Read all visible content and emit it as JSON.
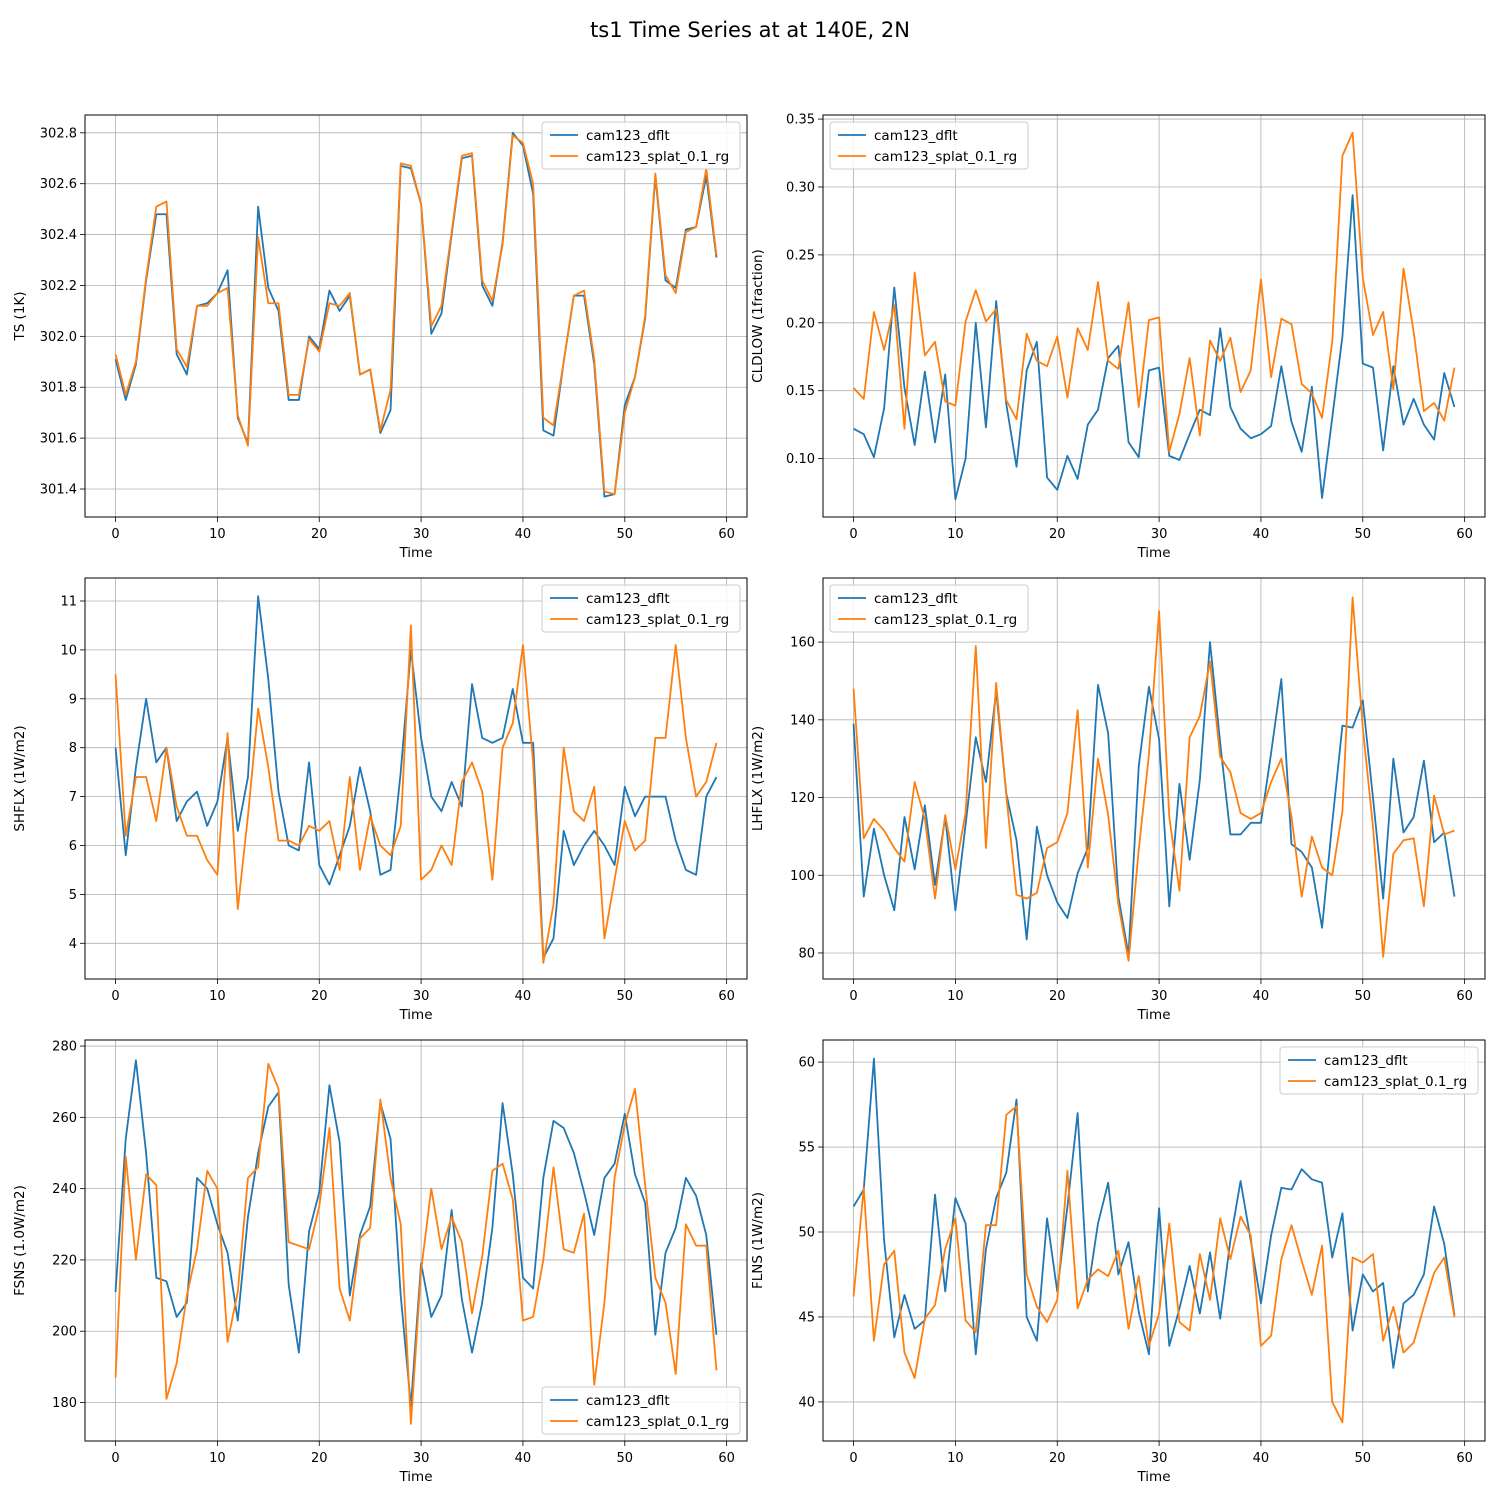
{
  "figure": {
    "title": "ts1 Time Series at at 140E, 2N"
  },
  "colors": {
    "cam123_dflt": "#1f77b4",
    "cam123_splat_0.1_rg": "#ff7f0e"
  },
  "chart_data": [
    {
      "type": "line",
      "ylabel": "TS (1K)",
      "xlabel": "Time",
      "xlim": [
        -3,
        62
      ],
      "ylim": [
        301.29,
        302.87
      ],
      "grid": true,
      "legend": "top-right",
      "xticks": [
        0,
        10,
        20,
        30,
        40,
        50,
        60
      ],
      "yticks": [
        301.4,
        301.6,
        301.8,
        302.0,
        302.2,
        302.4,
        302.6,
        302.8
      ],
      "ytick_labels": [
        "301.4",
        "301.6",
        "301.8",
        "302.0",
        "302.2",
        "302.4",
        "302.6",
        "302.8"
      ],
      "series": [
        {
          "name": "cam123_dflt",
          "values": [
            301.91,
            301.75,
            301.89,
            302.22,
            302.48,
            302.48,
            301.93,
            301.85,
            302.12,
            302.13,
            302.17,
            302.26,
            301.68,
            301.58,
            302.51,
            302.19,
            302.1,
            301.75,
            301.75,
            302.0,
            301.95,
            302.18,
            302.1,
            302.16,
            301.85,
            301.87,
            301.62,
            301.71,
            302.67,
            302.66,
            302.52,
            302.01,
            302.09,
            302.4,
            302.7,
            302.71,
            302.2,
            302.12,
            302.37,
            302.8,
            302.75,
            302.56,
            301.63,
            301.61,
            301.9,
            302.16,
            302.16,
            301.89,
            301.37,
            301.38,
            301.73,
            301.84,
            302.07,
            302.63,
            302.22,
            302.19,
            302.42,
            302.43,
            302.63,
            302.31
          ]
        },
        {
          "name": "cam123_splat_0.1_rg",
          "values": [
            301.93,
            301.77,
            301.9,
            302.23,
            302.51,
            302.53,
            301.95,
            301.88,
            302.12,
            302.12,
            302.17,
            302.19,
            301.69,
            301.57,
            302.39,
            302.13,
            302.13,
            301.77,
            301.77,
            301.99,
            301.94,
            302.13,
            302.12,
            302.17,
            301.85,
            301.87,
            301.63,
            301.79,
            302.68,
            302.67,
            302.52,
            302.04,
            302.12,
            302.41,
            302.71,
            302.72,
            302.22,
            302.14,
            302.36,
            302.79,
            302.76,
            302.6,
            301.68,
            301.65,
            301.9,
            302.16,
            302.18,
            301.91,
            301.39,
            301.38,
            301.7,
            301.84,
            302.08,
            302.64,
            302.24,
            302.17,
            302.41,
            302.43,
            302.66,
            302.32
          ]
        }
      ]
    },
    {
      "type": "line",
      "ylabel": "CLDLOW (1fraction)",
      "xlabel": "Time",
      "xlim": [
        -3,
        62
      ],
      "ylim": [
        0.057,
        0.353
      ],
      "grid": true,
      "legend": "top-left",
      "xticks": [
        0,
        10,
        20,
        30,
        40,
        50,
        60
      ],
      "yticks": [
        0.1,
        0.15,
        0.2,
        0.25,
        0.3,
        0.35
      ],
      "ytick_labels": [
        "0.10",
        "0.15",
        "0.20",
        "0.25",
        "0.30",
        "0.35"
      ],
      "series": [
        {
          "name": "cam123_dflt",
          "values": [
            0.122,
            0.118,
            0.101,
            0.137,
            0.226,
            0.152,
            0.11,
            0.164,
            0.112,
            0.162,
            0.07,
            0.1,
            0.2,
            0.123,
            0.216,
            0.14,
            0.094,
            0.165,
            0.186,
            0.086,
            0.077,
            0.102,
            0.085,
            0.125,
            0.136,
            0.174,
            0.183,
            0.112,
            0.101,
            0.165,
            0.167,
            0.102,
            0.099,
            0.118,
            0.136,
            0.132,
            0.196,
            0.138,
            0.122,
            0.115,
            0.118,
            0.124,
            0.168,
            0.127,
            0.105,
            0.153,
            0.071,
            0.13,
            0.19,
            0.294,
            0.17,
            0.167,
            0.106,
            0.168,
            0.125,
            0.144,
            0.125,
            0.114,
            0.163,
            0.138
          ]
        },
        {
          "name": "cam123_splat_0.1_rg",
          "values": [
            0.152,
            0.144,
            0.208,
            0.18,
            0.213,
            0.122,
            0.237,
            0.176,
            0.186,
            0.142,
            0.139,
            0.201,
            0.224,
            0.201,
            0.21,
            0.143,
            0.129,
            0.192,
            0.172,
            0.168,
            0.19,
            0.145,
            0.196,
            0.18,
            0.23,
            0.172,
            0.166,
            0.215,
            0.138,
            0.202,
            0.204,
            0.105,
            0.133,
            0.174,
            0.117,
            0.187,
            0.172,
            0.189,
            0.149,
            0.165,
            0.232,
            0.16,
            0.203,
            0.199,
            0.155,
            0.148,
            0.13,
            0.186,
            0.323,
            0.34,
            0.233,
            0.191,
            0.208,
            0.151,
            0.24,
            0.193,
            0.135,
            0.141,
            0.128,
            0.167
          ]
        }
      ]
    },
    {
      "type": "line",
      "ylabel": "SHFLX (1W/m2)",
      "xlabel": "Time",
      "xlim": [
        -3,
        62
      ],
      "ylim": [
        3.27,
        11.47
      ],
      "grid": true,
      "legend": "top-right",
      "xticks": [
        0,
        10,
        20,
        30,
        40,
        50,
        60
      ],
      "yticks": [
        4,
        5,
        6,
        7,
        8,
        9,
        10,
        11
      ],
      "ytick_labels": [
        "4",
        "5",
        "6",
        "7",
        "8",
        "9",
        "10",
        "11"
      ],
      "series": [
        {
          "name": "cam123_dflt",
          "values": [
            8.0,
            5.8,
            7.6,
            9.0,
            7.7,
            8.0,
            6.5,
            6.9,
            7.1,
            6.4,
            6.9,
            8.2,
            6.3,
            7.4,
            11.1,
            9.4,
            7.1,
            6.0,
            5.9,
            7.7,
            5.6,
            5.2,
            5.8,
            6.4,
            7.6,
            6.7,
            5.4,
            5.5,
            7.5,
            10.0,
            8.2,
            7.0,
            6.7,
            7.3,
            6.8,
            9.3,
            8.2,
            8.1,
            8.2,
            9.2,
            8.1,
            8.1,
            3.7,
            4.1,
            6.3,
            5.6,
            6.0,
            6.3,
            6.0,
            5.6,
            7.2,
            6.6,
            7.0,
            7.0,
            7.0,
            6.1,
            5.5,
            5.4,
            7.0,
            7.4
          ]
        },
        {
          "name": "cam123_splat_0.1_rg",
          "values": [
            9.5,
            6.2,
            7.4,
            7.4,
            6.5,
            8.0,
            6.8,
            6.2,
            6.2,
            5.7,
            5.4,
            8.3,
            4.7,
            6.6,
            8.8,
            7.6,
            6.1,
            6.1,
            6.0,
            6.4,
            6.3,
            6.5,
            5.5,
            7.4,
            5.5,
            6.6,
            6.0,
            5.8,
            6.4,
            10.5,
            5.3,
            5.5,
            6.0,
            5.6,
            7.3,
            7.7,
            7.1,
            5.3,
            8.0,
            8.5,
            10.1,
            7.7,
            3.6,
            4.8,
            8.0,
            6.7,
            6.5,
            7.2,
            4.1,
            5.3,
            6.5,
            5.9,
            6.1,
            8.2,
            8.2,
            10.1,
            8.2,
            7.0,
            7.3,
            8.1
          ]
        }
      ]
    },
    {
      "type": "line",
      "ylabel": "LHFLX (1W/m2)",
      "xlabel": "Time",
      "xlim": [
        -3,
        62
      ],
      "ylim": [
        73.3,
        176.5
      ],
      "grid": true,
      "legend": "top-left",
      "xticks": [
        0,
        10,
        20,
        30,
        40,
        50,
        60
      ],
      "yticks": [
        80,
        100,
        120,
        140,
        160
      ],
      "ytick_labels": [
        "80",
        "100",
        "120",
        "140",
        "160"
      ],
      "series": [
        {
          "name": "cam123_dflt",
          "values": [
            139.0,
            94.5,
            112.0,
            100.0,
            91.0,
            115.0,
            101.5,
            118.0,
            97.5,
            115.0,
            91.0,
            113.0,
            135.5,
            124.0,
            147.5,
            121.0,
            109.0,
            83.5,
            112.5,
            100.0,
            93.0,
            89.0,
            100.5,
            107.0,
            149.0,
            136.5,
            94.5,
            79.5,
            128.0,
            148.5,
            135.0,
            92.0,
            123.5,
            104.0,
            124.5,
            160.0,
            134.0,
            110.5,
            110.5,
            113.5,
            113.5,
            131.5,
            150.5,
            108.0,
            106.0,
            102.0,
            86.5,
            113.5,
            138.5,
            138.0,
            145.0,
            120.0,
            94.0,
            130.0,
            111.0,
            115.0,
            129.5,
            108.5,
            111.0,
            94.5
          ]
        },
        {
          "name": "cam123_splat_0.1_rg",
          "values": [
            148.0,
            109.5,
            114.5,
            111.5,
            107.0,
            103.5,
            124.0,
            114.5,
            94.0,
            115.5,
            101.5,
            116.0,
            159.0,
            107.0,
            149.5,
            120.5,
            95.0,
            94.0,
            95.5,
            107.0,
            108.5,
            116.0,
            142.5,
            102.0,
            130.0,
            115.5,
            92.5,
            78.0,
            106.5,
            131.0,
            168.0,
            115.0,
            96.0,
            135.5,
            141.0,
            155.0,
            130.5,
            126.5,
            116.0,
            114.5,
            116.0,
            124.0,
            130.0,
            115.0,
            94.5,
            110.0,
            102.0,
            100.0,
            116.5,
            171.5,
            138.0,
            112.5,
            79.0,
            105.5,
            109.0,
            109.5,
            92.0,
            120.5,
            110.5,
            111.5
          ]
        }
      ]
    },
    {
      "type": "line",
      "ylabel": "FSNS (1.0W/m2)",
      "xlabel": "Time",
      "xlim": [
        -3,
        62
      ],
      "ylim": [
        169.2,
        281.7
      ],
      "grid": true,
      "legend": "bottom-right",
      "xticks": [
        0,
        10,
        20,
        30,
        40,
        50,
        60
      ],
      "yticks": [
        180,
        200,
        220,
        240,
        260,
        280
      ],
      "ytick_labels": [
        "180",
        "200",
        "220",
        "240",
        "260",
        "280"
      ],
      "series": [
        {
          "name": "cam123_dflt",
          "values": [
            211,
            254,
            276,
            250,
            215,
            214,
            204,
            208,
            243,
            240,
            230,
            222,
            203,
            232,
            250,
            263,
            267,
            213,
            194,
            228,
            239,
            269,
            253,
            210,
            227,
            235,
            264,
            254,
            210,
            179,
            219,
            204,
            210,
            234,
            209,
            194,
            208,
            229,
            264,
            244,
            215,
            212,
            243,
            259,
            257,
            250,
            239,
            227,
            243,
            247,
            261,
            244,
            236,
            199,
            222,
            229,
            243,
            238,
            227,
            199
          ]
        },
        {
          "name": "cam123_splat_0.1_rg",
          "values": [
            187,
            249,
            220,
            244,
            241,
            181,
            191,
            210,
            223,
            245,
            240,
            197,
            211,
            243,
            246,
            275,
            268,
            225,
            224,
            223,
            235,
            257,
            212,
            203,
            226,
            229,
            265,
            243,
            230,
            174,
            217,
            240,
            223,
            232,
            225,
            205,
            221,
            245,
            247,
            237,
            203,
            204,
            220,
            246,
            223,
            222,
            233,
            185,
            208,
            243,
            258,
            268,
            241,
            215,
            208,
            188,
            230,
            224,
            224,
            189
          ]
        }
      ]
    },
    {
      "type": "line",
      "ylabel": "FLNS (1W/m2)",
      "xlabel": "Time",
      "xlim": [
        -3,
        62
      ],
      "ylim": [
        37.7,
        61.3
      ],
      "grid": true,
      "legend": "top-right",
      "xticks": [
        0,
        10,
        20,
        30,
        40,
        50,
        60
      ],
      "yticks": [
        40,
        45,
        50,
        55,
        60
      ],
      "ytick_labels": [
        "40",
        "45",
        "50",
        "55",
        "60"
      ],
      "series": [
        {
          "name": "cam123_dflt",
          "values": [
            51.5,
            52.5,
            60.2,
            49.5,
            43.8,
            46.3,
            44.3,
            44.8,
            52.2,
            46.5,
            52.0,
            50.5,
            42.8,
            49.0,
            52.0,
            53.5,
            57.8,
            45.0,
            43.6,
            50.8,
            46.5,
            51.5,
            57.0,
            46.5,
            50.5,
            52.9,
            47.5,
            49.4,
            45.3,
            42.8,
            51.4,
            43.3,
            45.5,
            48.0,
            45.2,
            48.8,
            44.9,
            49.5,
            53.0,
            49.5,
            45.8,
            49.8,
            52.6,
            52.5,
            53.7,
            53.1,
            52.9,
            48.5,
            51.1,
            44.2,
            47.5,
            46.5,
            47.0,
            42.0,
            45.8,
            46.3,
            47.5,
            51.5,
            49.3,
            45.1
          ]
        },
        {
          "name": "cam123_splat_0.1_rg",
          "values": [
            46.2,
            52.6,
            43.6,
            48.1,
            48.9,
            42.9,
            41.4,
            44.9,
            45.7,
            49.0,
            50.8,
            44.8,
            44.1,
            50.4,
            50.4,
            56.9,
            57.4,
            47.5,
            45.6,
            44.7,
            46.0,
            53.6,
            45.5,
            47.2,
            47.8,
            47.4,
            48.9,
            44.3,
            47.4,
            43.3,
            45.2,
            50.5,
            44.7,
            44.2,
            48.7,
            46.0,
            50.8,
            48.4,
            50.9,
            49.8,
            43.3,
            43.9,
            48.4,
            50.4,
            48.3,
            46.3,
            49.2,
            40.0,
            38.8,
            48.5,
            48.2,
            48.7,
            43.6,
            45.6,
            42.9,
            43.5,
            45.6,
            47.6,
            48.5,
            45.0
          ]
        }
      ]
    }
  ]
}
